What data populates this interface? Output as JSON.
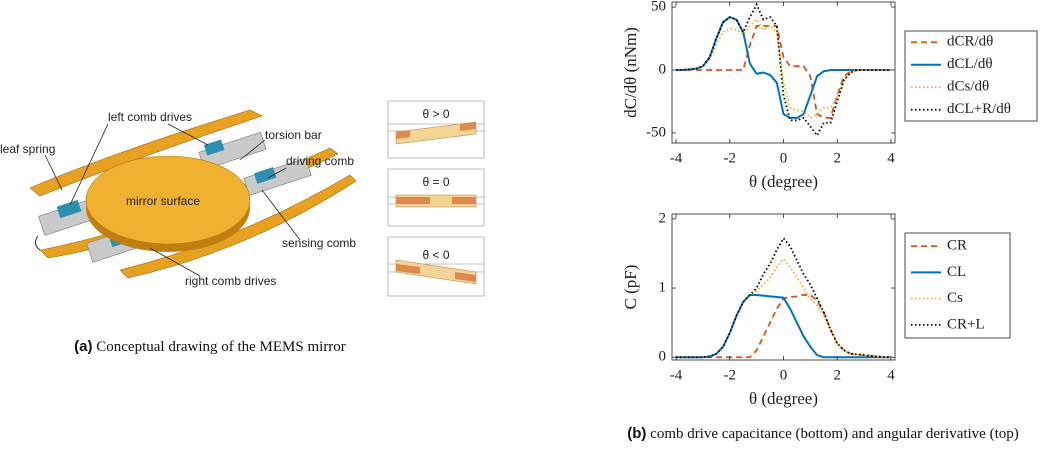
{
  "panel_a": {
    "labels": [
      "leaf spring",
      "left comb drives",
      "torsion bar",
      "driving comb",
      "mirror surface",
      "sensing comb",
      "right comb drives"
    ],
    "insets": [
      "θ > 0",
      "θ = 0",
      "θ < 0"
    ],
    "caption_tag": "(a)",
    "caption": "Conceptual drawing of the MEMS mirror"
  },
  "panel_b": {
    "caption_tag": "(b)",
    "caption": "comb drive capacitance (bottom) and angular derivative (top)"
  },
  "chart_data": [
    {
      "type": "line",
      "xlabel": "θ (degree)",
      "ylabel": "dC/dθ (nNm)",
      "x": [
        -4,
        -3.75,
        -3.5,
        -3.25,
        -3,
        -2.75,
        -2.5,
        -2.25,
        -2,
        -1.75,
        -1.5,
        -1.25,
        -1,
        -0.75,
        -0.5,
        -0.25,
        0,
        0.25,
        0.5,
        0.75,
        1,
        1.25,
        1.5,
        1.75,
        2,
        2.25,
        2.5,
        2.75,
        3,
        3.25,
        3.5,
        3.75,
        4
      ],
      "xlim": [
        -4.15,
        4.15
      ],
      "xticks": [
        -4,
        -2,
        0,
        2,
        4
      ],
      "ylim": [
        -58,
        54
      ],
      "yticks": [
        -50,
        0,
        50
      ],
      "legend": "outside right",
      "series": [
        {
          "name": "dCR/dθ",
          "color": "#d95319",
          "style": "dashed",
          "values": [
            0,
            0,
            0,
            0,
            0,
            0,
            0,
            0,
            0,
            0,
            0,
            20,
            35,
            35,
            35,
            35,
            10,
            3,
            3,
            3,
            -5,
            -35,
            -38,
            -38,
            -20,
            -5,
            -1,
            0,
            0,
            0,
            0,
            0,
            0
          ]
        },
        {
          "name": "dCL/dθ",
          "color": "#0072bd",
          "style": "solid",
          "values": [
            0,
            0,
            0.5,
            1,
            3,
            10,
            25,
            38,
            42,
            40,
            30,
            5,
            -3,
            -2,
            -4,
            -10,
            -35,
            -38,
            -38,
            -35,
            -20,
            -5,
            -1,
            0,
            0,
            0,
            0,
            0,
            0,
            0,
            0,
            0,
            0
          ]
        },
        {
          "name": "dCs/dθ",
          "color": "#edb120",
          "style": "dotted",
          "values": [
            0,
            0,
            0.5,
            1,
            3,
            8,
            20,
            30,
            33,
            32,
            28,
            35,
            40,
            32,
            35,
            30,
            -10,
            -30,
            -32,
            -33,
            -38,
            -35,
            -30,
            -30,
            -22,
            -8,
            -2,
            0,
            0,
            0,
            0,
            0,
            0
          ]
        },
        {
          "name": "dCL+R/dθ",
          "color": "#000000",
          "style": "dotted",
          "values": [
            0,
            0,
            0.5,
            1,
            3,
            10,
            25,
            38,
            42,
            40,
            30,
            42,
            52,
            40,
            42,
            35,
            -20,
            -40,
            -40,
            -38,
            -45,
            -52,
            -42,
            -42,
            -25,
            -8,
            -2,
            0,
            0,
            0,
            0,
            0,
            0
          ]
        }
      ]
    },
    {
      "type": "line",
      "xlabel": "θ (degree)",
      "ylabel": "C (pF)",
      "x": [
        -4,
        -3.75,
        -3.5,
        -3.25,
        -3,
        -2.75,
        -2.5,
        -2.25,
        -2,
        -1.75,
        -1.5,
        -1.25,
        -1,
        -0.75,
        -0.5,
        -0.25,
        0,
        0.25,
        0.5,
        0.75,
        1,
        1.25,
        1.5,
        1.75,
        2,
        2.25,
        2.5,
        2.75,
        3,
        3.25,
        3.5,
        3.75,
        4
      ],
      "xlim": [
        -4.15,
        4.15
      ],
      "xticks": [
        -4,
        -2,
        0,
        2,
        4
      ],
      "ylim": [
        -0.04,
        2.07
      ],
      "yticks": [
        0,
        1,
        2
      ],
      "legend": "outside right",
      "series": [
        {
          "name": "CR",
          "color": "#d95319",
          "style": "dashed",
          "values": [
            0,
            0,
            0,
            0,
            0,
            0,
            0,
            0,
            0,
            0,
            0,
            0,
            0.1,
            0.3,
            0.5,
            0.7,
            0.85,
            0.87,
            0.88,
            0.9,
            0.9,
            0.82,
            0.65,
            0.4,
            0.2,
            0.1,
            0.05,
            0.04,
            0.03,
            0.02,
            0.01,
            0,
            0
          ]
        },
        {
          "name": "CL",
          "color": "#0072bd",
          "style": "solid",
          "values": [
            0,
            0,
            0,
            0,
            0,
            0.01,
            0.05,
            0.15,
            0.35,
            0.6,
            0.8,
            0.9,
            0.9,
            0.89,
            0.88,
            0.87,
            0.86,
            0.7,
            0.5,
            0.3,
            0.15,
            0.03,
            0,
            0,
            0,
            0,
            0,
            0,
            0,
            0,
            0,
            0,
            0
          ]
        },
        {
          "name": "Cs",
          "color": "#edb120",
          "style": "dotted",
          "values": [
            0,
            0,
            0,
            0,
            0,
            0.01,
            0.05,
            0.15,
            0.35,
            0.6,
            0.8,
            0.9,
            0.95,
            1.05,
            1.15,
            1.3,
            1.42,
            1.3,
            1.15,
            1.0,
            0.85,
            0.75,
            0.6,
            0.4,
            0.2,
            0.1,
            0.05,
            0.04,
            0.03,
            0.02,
            0.01,
            0,
            0
          ]
        },
        {
          "name": "CR+L",
          "color": "#000000",
          "style": "dotted",
          "values": [
            0,
            0,
            0,
            0,
            0,
            0.01,
            0.05,
            0.15,
            0.35,
            0.6,
            0.8,
            0.9,
            1.0,
            1.2,
            1.35,
            1.55,
            1.72,
            1.6,
            1.4,
            1.2,
            1.05,
            0.85,
            0.65,
            0.4,
            0.2,
            0.1,
            0.05,
            0.04,
            0.03,
            0.02,
            0.01,
            0,
            0
          ]
        }
      ]
    }
  ]
}
